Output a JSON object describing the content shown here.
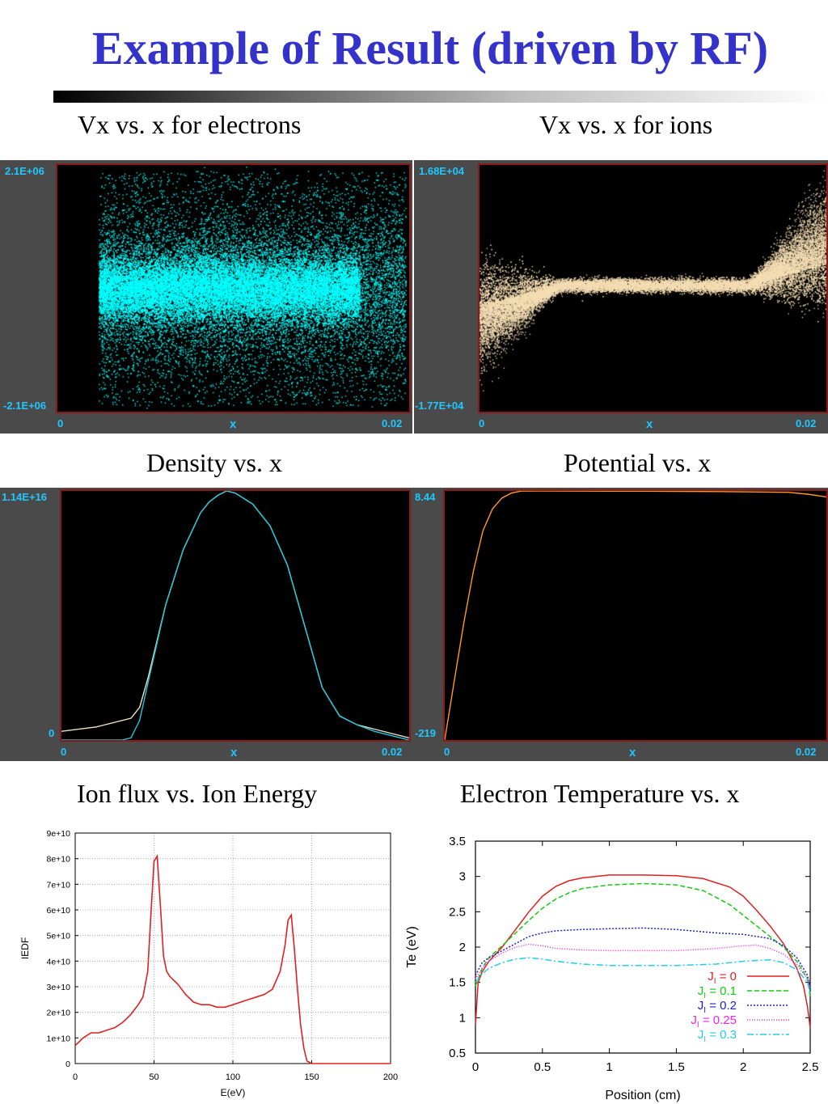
{
  "slide": {
    "title": "Example of Result (driven by RF)"
  },
  "captions": {
    "top_left": "Vx vs. x for electrons",
    "top_right": "Vx vs. x for ions",
    "mid_left": "Density vs. x",
    "mid_right": "Potential vs. x",
    "bot_left": "Ion flux vs. Ion Energy",
    "bot_right": "Electron Temperature vs. x"
  },
  "chart_data": [
    {
      "id": "electrons_vx",
      "type": "scatter",
      "y_top_label": "2.1E+06",
      "y_bottom_label": "-2.1E+06",
      "x_left_label": "0",
      "x_mid_label": "x",
      "x_right_label": "0.02",
      "xlim": [
        0,
        0.02
      ],
      "ylim": [
        -2100000.0,
        2100000.0
      ],
      "color": "#00ffff"
    },
    {
      "id": "ions_vx",
      "type": "scatter",
      "y_top_label": "1.68E+04",
      "y_bottom_label": "-1.77E+04",
      "x_left_label": "0",
      "x_mid_label": "x",
      "x_right_label": "0.02",
      "xlim": [
        0,
        0.02
      ],
      "ylim": [
        -17700,
        16800
      ],
      "color": "#f5ddb3"
    },
    {
      "id": "density",
      "type": "line",
      "y_top_label": "1.14E+16",
      "y_bottom_label": "0",
      "x_left_label": "0",
      "x_mid_label": "x",
      "x_right_label": "0.02",
      "xlim": [
        0,
        0.02
      ],
      "ylim": [
        0,
        1.14e+16
      ],
      "series": [
        {
          "color": "#f0e0c0",
          "x": [
            0,
            0.002,
            0.004,
            0.0045,
            0.005,
            0.006,
            0.007,
            0.008,
            0.0085,
            0.009,
            0.0095,
            0.01,
            0.011,
            0.012,
            0.013,
            0.014,
            0.015,
            0.016,
            0.017,
            0.018,
            0.02
          ],
          "y": [
            400000000000000.0,
            600000000000000.0,
            1000000000000000.0,
            1500000000000000.0,
            2900000000000000.0,
            6200000000000000.0,
            8700000000000000.0,
            1.04e+16,
            1.09e+16,
            1.12e+16,
            1.14e+16,
            1.13e+16,
            1.08e+16,
            9800000000000000.0,
            8000000000000000.0,
            5200000000000000.0,
            2400000000000000.0,
            1100000000000000.0,
            700000000000000.0,
            500000000000000.0,
            100000000000000.0
          ]
        },
        {
          "color": "#1ec8dc",
          "x": [
            0,
            0.0035,
            0.004,
            0.0045,
            0.005,
            0.006,
            0.007,
            0.008,
            0.0085,
            0.009,
            0.0095,
            0.01,
            0.011,
            0.012,
            0.013,
            0.014,
            0.015,
            0.016,
            0.017,
            0.018,
            0.02
          ],
          "y": [
            0,
            0,
            100000000000000.0,
            900000000000000.0,
            2700000000000000.0,
            6200000000000000.0,
            8700000000000000.0,
            1.04e+16,
            1.09e+16,
            1.12e+16,
            1.14e+16,
            1.13e+16,
            1.08e+16,
            9800000000000000.0,
            8000000000000000.0,
            5200000000000000.0,
            2400000000000000.0,
            1100000000000000.0,
            700000000000000.0,
            400000000000000.0,
            0
          ]
        }
      ]
    },
    {
      "id": "potential",
      "type": "line",
      "y_top_label": "8.44",
      "y_bottom_label": "-219",
      "x_left_label": "0",
      "x_mid_label": "x",
      "x_right_label": "0.02",
      "xlim": [
        0,
        0.02
      ],
      "ylim": [
        -219,
        8.44
      ],
      "series": [
        {
          "color": "#ff9a1e",
          "x": [
            0,
            0.0005,
            0.001,
            0.0015,
            0.002,
            0.0025,
            0.003,
            0.0035,
            0.004,
            0.005,
            0.01,
            0.015,
            0.018,
            0.019,
            0.02
          ],
          "y": [
            -219,
            -165,
            -112,
            -65,
            -28,
            -8,
            2,
            6.5,
            8.3,
            8.44,
            8.2,
            7.8,
            7.2,
            5.5,
            3
          ]
        }
      ]
    },
    {
      "id": "iedf",
      "type": "line",
      "title": "",
      "xlabel": "E(eV)",
      "ylabel": "IEDF",
      "xlim": [
        0,
        200
      ],
      "ylim": [
        0,
        90000000000.0
      ],
      "x_ticks": [
        "0",
        "50",
        "100",
        "150",
        "200"
      ],
      "y_ticks": [
        "0",
        "1e+10",
        "2e+10",
        "3e+10",
        "4e+10",
        "5e+10",
        "6e+10",
        "7e+10",
        "8e+10",
        "9e+10"
      ],
      "grid": true,
      "series": [
        {
          "color": "#e02020",
          "x": [
            0,
            5,
            10,
            15,
            20,
            25,
            30,
            35,
            40,
            43,
            46,
            48,
            50,
            52,
            54,
            56,
            58,
            60,
            65,
            70,
            75,
            80,
            85,
            90,
            95,
            100,
            105,
            110,
            115,
            120,
            125,
            130,
            133,
            135,
            137,
            139,
            141,
            143,
            145,
            147,
            150,
            200
          ],
          "y": [
            7000000000.0,
            10000000000.0,
            12000000000.0,
            12000000000.0,
            13000000000.0,
            14000000000.0,
            16000000000.0,
            19000000000.0,
            23000000000.0,
            26000000000.0,
            36000000000.0,
            58000000000.0,
            79000000000.0,
            81000000000.0,
            62000000000.0,
            42000000000.0,
            36000000000.0,
            34000000000.0,
            31000000000.0,
            27000000000.0,
            24000000000.0,
            23000000000.0,
            23000000000.0,
            22000000000.0,
            22000000000.0,
            23000000000.0,
            24000000000.0,
            25000000000.0,
            26000000000.0,
            27000000000.0,
            29000000000.0,
            36000000000.0,
            46000000000.0,
            56000000000.0,
            58000000000.0,
            45000000000.0,
            29000000000.0,
            15000000000.0,
            6000000000.0,
            1000000000.0,
            0,
            0
          ]
        }
      ]
    },
    {
      "id": "electron_temperature",
      "type": "line",
      "title": "",
      "xlabel": "Position (cm)",
      "ylabel": "Te (eV)",
      "xlim": [
        0,
        2.5
      ],
      "ylim": [
        0.5,
        3.5
      ],
      "x_ticks": [
        "0",
        "0.5",
        "1",
        "1.5",
        "2",
        "2.5"
      ],
      "y_ticks": [
        "0.5",
        "1",
        "1.5",
        "2",
        "2.5",
        "3",
        "3.5"
      ],
      "legend": "bottom-right",
      "series": [
        {
          "name": "J",
          "subscript": "I",
          "value_label": " = 0",
          "color": "#e02020",
          "dash": "",
          "x": [
            0,
            0.02,
            0.05,
            0.1,
            0.2,
            0.3,
            0.4,
            0.5,
            0.6,
            0.7,
            0.8,
            1.0,
            1.25,
            1.5,
            1.7,
            1.9,
            2.0,
            2.1,
            2.2,
            2.3,
            2.4,
            2.45,
            2.48,
            2.5
          ],
          "y": [
            0.9,
            1.5,
            1.65,
            1.8,
            2.0,
            2.25,
            2.5,
            2.72,
            2.86,
            2.94,
            2.98,
            3.02,
            3.02,
            3.01,
            2.97,
            2.85,
            2.72,
            2.52,
            2.3,
            2.05,
            1.7,
            1.45,
            1.15,
            0.85
          ]
        },
        {
          "name": "J",
          "subscript": "I",
          "value_label": " = 0.1",
          "color": "#11cc11",
          "dash": "6,3",
          "x": [
            0,
            0.05,
            0.1,
            0.2,
            0.3,
            0.4,
            0.5,
            0.6,
            0.7,
            0.8,
            1.0,
            1.25,
            1.5,
            1.7,
            1.9,
            2.0,
            2.1,
            2.2,
            2.3,
            2.4,
            2.48,
            2.5
          ],
          "y": [
            1.45,
            1.7,
            1.85,
            2.02,
            2.2,
            2.38,
            2.55,
            2.68,
            2.77,
            2.83,
            2.88,
            2.9,
            2.88,
            2.8,
            2.6,
            2.45,
            2.3,
            2.15,
            2.0,
            1.8,
            1.55,
            1.3
          ]
        },
        {
          "name": "J",
          "subscript": "I",
          "value_label": " = 0.2",
          "color": "#2020cc",
          "dash": "2,2",
          "x": [
            0,
            0.05,
            0.1,
            0.2,
            0.3,
            0.4,
            0.5,
            0.6,
            0.8,
            1.0,
            1.25,
            1.5,
            1.8,
            2.0,
            2.2,
            2.3,
            2.4,
            2.48,
            2.5
          ],
          "y": [
            1.6,
            1.78,
            1.85,
            1.95,
            2.05,
            2.15,
            2.2,
            2.23,
            2.25,
            2.26,
            2.27,
            2.25,
            2.2,
            2.18,
            2.12,
            2.02,
            1.85,
            1.6,
            1.4
          ]
        },
        {
          "name": "J",
          "subscript": "I",
          "value_label": " = 0.25",
          "color": "#ee22ee",
          "dash": "1,2",
          "x": [
            0,
            0.05,
            0.1,
            0.2,
            0.3,
            0.4,
            0.5,
            0.6,
            0.8,
            1.0,
            1.25,
            1.5,
            1.8,
            2.0,
            2.1,
            2.2,
            2.3,
            2.4,
            2.48,
            2.5
          ],
          "y": [
            1.55,
            1.7,
            1.8,
            1.92,
            2.0,
            2.04,
            2.02,
            1.98,
            1.96,
            1.95,
            1.95,
            1.95,
            1.98,
            2.02,
            2.03,
            1.98,
            1.9,
            1.75,
            1.55,
            1.4
          ]
        },
        {
          "name": "J",
          "subscript": "I",
          "value_label": " = 0.3",
          "color": "#22ccee",
          "dash": "8,3,2,3",
          "x": [
            0,
            0.05,
            0.1,
            0.2,
            0.3,
            0.4,
            0.5,
            0.6,
            0.8,
            1.0,
            1.25,
            1.5,
            1.8,
            2.0,
            2.2,
            2.3,
            2.4,
            2.48,
            2.5
          ],
          "y": [
            1.5,
            1.62,
            1.7,
            1.78,
            1.83,
            1.85,
            1.83,
            1.8,
            1.76,
            1.74,
            1.74,
            1.74,
            1.76,
            1.8,
            1.82,
            1.78,
            1.68,
            1.5,
            1.35
          ]
        }
      ]
    }
  ]
}
